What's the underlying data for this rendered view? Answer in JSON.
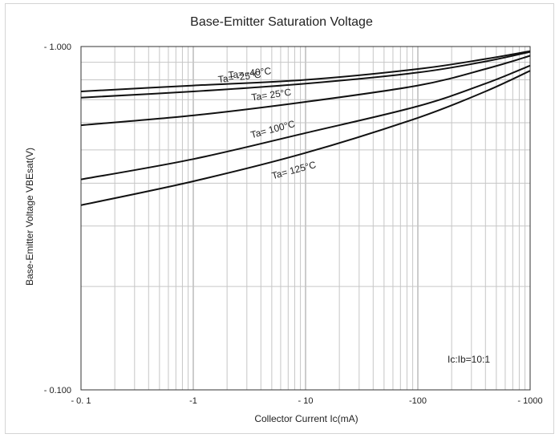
{
  "chart_data": {
    "type": "line",
    "title": "Base-Emitter Saturation Voltage",
    "xlabel": "Collector Current  Ic(mA)",
    "ylabel": "Base-Emitter Voltage  VBEsat(V)",
    "xscale": "log",
    "yscale": "log",
    "xlim": [
      0.1,
      1000
    ],
    "ylim": [
      0.1,
      1.0
    ],
    "x_ticks": [
      0.1,
      1,
      10,
      100,
      1000
    ],
    "x_tick_labels": [
      "- 0. 1",
      "-1",
      "- 10",
      "-100",
      "- 1000"
    ],
    "y_ticks": [
      0.1,
      1.0
    ],
    "y_tick_labels": [
      "- 0.100",
      "- 1.000"
    ],
    "grid": true,
    "annotation": "Ic:Ib=10:1",
    "series": [
      {
        "name": "Ta= -40°C",
        "x": [
          0.1,
          1,
          10,
          100,
          400,
          1000
        ],
        "y": [
          0.74,
          0.77,
          0.8,
          0.86,
          0.92,
          0.97
        ]
      },
      {
        "name": "Ta= -25°C",
        "x": [
          0.1,
          1,
          10,
          100,
          400,
          1000
        ],
        "y": [
          0.71,
          0.74,
          0.78,
          0.84,
          0.905,
          0.965
        ]
      },
      {
        "name": "Ta= 25°C",
        "x": [
          0.1,
          1,
          10,
          100,
          400,
          1000
        ],
        "y": [
          0.59,
          0.63,
          0.69,
          0.77,
          0.86,
          0.94
        ]
      },
      {
        "name": "Ta= 100°C",
        "x": [
          0.1,
          1,
          10,
          100,
          400,
          1000
        ],
        "y": [
          0.41,
          0.47,
          0.56,
          0.67,
          0.78,
          0.88
        ]
      },
      {
        "name": "Ta= 125°C",
        "x": [
          0.1,
          1,
          10,
          100,
          400,
          1000
        ],
        "y": [
          0.345,
          0.405,
          0.49,
          0.62,
          0.74,
          0.85
        ]
      }
    ],
    "series_label_text": [
      "Ta= -40°C",
      "Ta= -25°C",
      "Ta= 25°C",
      "Ta= 100°C",
      "Ta= 125°C"
    ]
  }
}
